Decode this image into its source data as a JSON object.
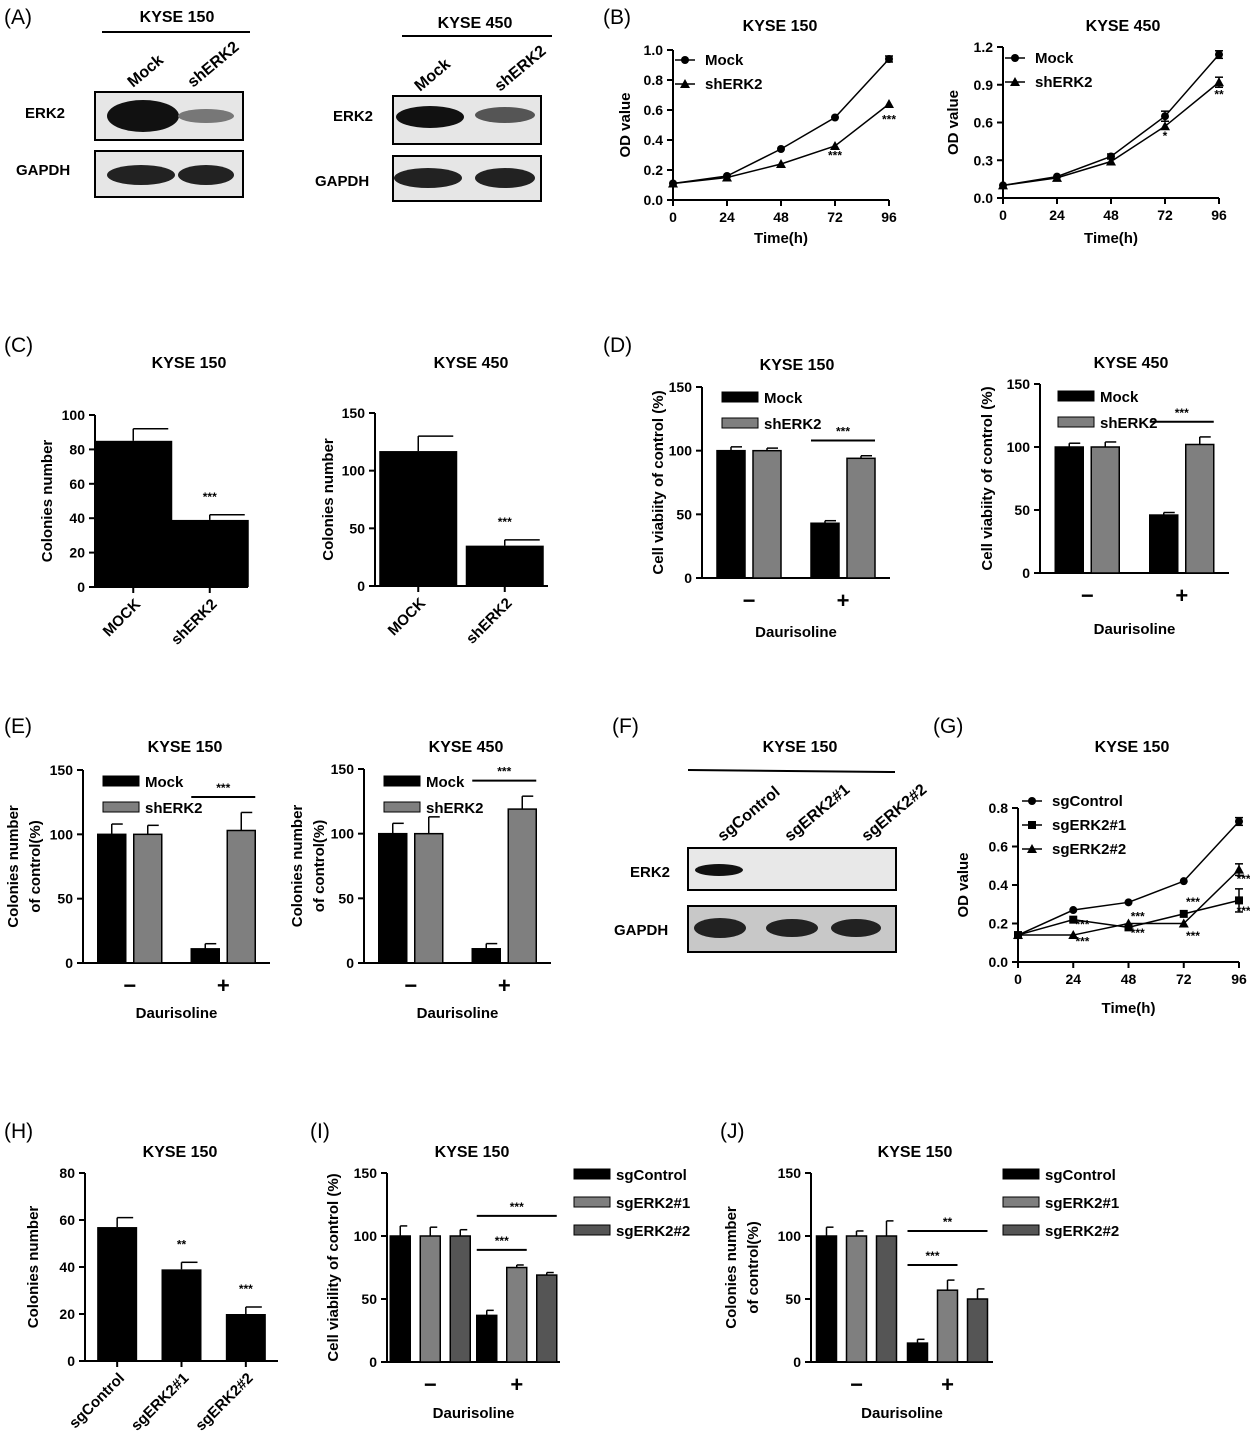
{
  "panels": {
    "A": {
      "label": "(A)",
      "blots": [
        {
          "cell_line": "KYSE 150",
          "lanes": [
            "Mock",
            "shERK2"
          ],
          "rows": [
            "ERK2",
            "GAPDH"
          ]
        },
        {
          "cell_line": "KYSE 450",
          "lanes": [
            "Mock",
            "shERK2"
          ],
          "rows": [
            "ERK2",
            "GAPDH"
          ]
        }
      ]
    },
    "F": {
      "label": "(F)",
      "cell_line": "KYSE 150",
      "lanes": [
        "sgControl",
        "sgERK2#1",
        "sgERK2#2"
      ],
      "rows": [
        "ERK2",
        "GAPDH"
      ]
    },
    "B": {
      "label": "(B)"
    },
    "C": {
      "label": "(C)"
    },
    "D": {
      "label": "(D)"
    },
    "E": {
      "label": "(E)"
    },
    "G": {
      "label": "(G)"
    },
    "H": {
      "label": "(H)"
    },
    "I": {
      "label": "(I)"
    },
    "J": {
      "label": "(J)"
    }
  },
  "chart_data": [
    {
      "id": "B1",
      "type": "line",
      "title": "KYSE 150",
      "xlabel": "Time(h)",
      "ylabel": "OD value",
      "x": [
        0,
        24,
        48,
        72,
        96
      ],
      "xlim": [
        0,
        96
      ],
      "ylim": [
        0,
        1.0
      ],
      "yticks": [
        "0.0",
        "0.2",
        "0.4",
        "0.6",
        "0.8",
        "1.0"
      ],
      "xticks": [
        "0",
        "24",
        "48",
        "72",
        "96"
      ],
      "series": [
        {
          "name": "Mock",
          "marker": "circle",
          "values": [
            0.11,
            0.16,
            0.34,
            0.55,
            0.94
          ],
          "err": [
            0,
            0,
            0,
            0,
            0.02
          ]
        },
        {
          "name": "shERK2",
          "marker": "triangle",
          "values": [
            0.11,
            0.15,
            0.24,
            0.36,
            0.64
          ],
          "err": [
            0,
            0,
            0,
            0,
            0
          ]
        }
      ],
      "annotations": [
        {
          "x": 72,
          "y": 0.27,
          "text": "***"
        },
        {
          "x": 96,
          "y": 0.51,
          "text": "***"
        }
      ]
    },
    {
      "id": "B2",
      "type": "line",
      "title": "KYSE 450",
      "xlabel": "Time(h)",
      "ylabel": "OD value",
      "x": [
        0,
        24,
        48,
        72,
        96
      ],
      "xlim": [
        0,
        96
      ],
      "ylim": [
        0,
        1.2
      ],
      "yticks": [
        "0.0",
        "0.3",
        "0.6",
        "0.9",
        "1.2"
      ],
      "xticks": [
        "0",
        "24",
        "48",
        "72",
        "96"
      ],
      "series": [
        {
          "name": "Mock",
          "marker": "circle",
          "values": [
            0.1,
            0.17,
            0.33,
            0.65,
            1.14
          ],
          "err": [
            0,
            0,
            0.02,
            0.04,
            0.03
          ]
        },
        {
          "name": "shERK2",
          "marker": "triangle",
          "values": [
            0.1,
            0.16,
            0.29,
            0.57,
            0.92
          ],
          "err": [
            0,
            0,
            0,
            0,
            0.04
          ]
        }
      ],
      "annotations": [
        {
          "x": 72,
          "y": 0.46,
          "text": "*"
        },
        {
          "x": 96,
          "y": 0.79,
          "text": "**"
        }
      ]
    },
    {
      "id": "C1",
      "type": "bar",
      "title": "KYSE 150",
      "ylabel": "Colonies number",
      "ylim": [
        0,
        100
      ],
      "yticks": [
        "0",
        "20",
        "40",
        "60",
        "80",
        "100"
      ],
      "categories": [
        "MOCK",
        "shERK2"
      ],
      "values": [
        85,
        39
      ],
      "err": [
        7,
        3
      ],
      "annotations": [
        {
          "index": 1,
          "text": "***"
        }
      ]
    },
    {
      "id": "C2",
      "type": "bar",
      "title": "KYSE 450",
      "ylabel": "Colonies number",
      "ylim": [
        0,
        150
      ],
      "yticks": [
        "0",
        "50",
        "100",
        "150"
      ],
      "categories": [
        "MOCK",
        "shERK2"
      ],
      "values": [
        117,
        35
      ],
      "err": [
        13,
        5
      ],
      "annotations": [
        {
          "index": 1,
          "text": "***"
        }
      ]
    },
    {
      "id": "D1",
      "type": "bar",
      "title": "KYSE 150",
      "xlabel": "Daurisoline",
      "ylabel": "Cell viabiity of control (%)",
      "ylim": [
        0,
        150
      ],
      "yticks": [
        "0",
        "50",
        "100",
        "150"
      ],
      "categories": [
        "−",
        "+"
      ],
      "series": [
        {
          "name": "Mock",
          "values": [
            100,
            43
          ],
          "err": [
            3,
            2
          ]
        },
        {
          "name": "shERK2",
          "values": [
            100,
            94
          ],
          "err": [
            2,
            2
          ]
        }
      ],
      "brackets": [
        {
          "group": 1,
          "text": "***"
        }
      ]
    },
    {
      "id": "D2",
      "type": "bar",
      "title": "KYSE 450",
      "xlabel": "Daurisoline",
      "ylabel": "Cell viabiity of control (%)",
      "ylim": [
        0,
        150
      ],
      "yticks": [
        "0",
        "50",
        "100",
        "150"
      ],
      "categories": [
        "−",
        "+"
      ],
      "series": [
        {
          "name": "Mock",
          "values": [
            100,
            46
          ],
          "err": [
            3,
            2
          ]
        },
        {
          "name": "shERK2",
          "values": [
            100,
            102
          ],
          "err": [
            4,
            6
          ]
        }
      ],
      "brackets": [
        {
          "group": 1,
          "text": "***"
        }
      ]
    },
    {
      "id": "E1",
      "type": "bar",
      "title": "KYSE 150",
      "xlabel": "Daurisoline",
      "ylabel": [
        "Colonies number",
        "of control(%)"
      ],
      "ylim": [
        0,
        150
      ],
      "yticks": [
        "0",
        "50",
        "100",
        "150"
      ],
      "categories": [
        "−",
        "+"
      ],
      "series": [
        {
          "name": "Mock",
          "values": [
            100,
            11
          ],
          "err": [
            8,
            4
          ]
        },
        {
          "name": "shERK2",
          "values": [
            100,
            103
          ],
          "err": [
            7,
            14
          ]
        }
      ],
      "brackets": [
        {
          "group": 1,
          "text": "***"
        }
      ]
    },
    {
      "id": "E2",
      "type": "bar",
      "title": "KYSE 450",
      "xlabel": "Daurisoline",
      "ylabel": [
        "Colonies number",
        "of control(%)"
      ],
      "ylim": [
        0,
        150
      ],
      "yticks": [
        "0",
        "50",
        "100",
        "150"
      ],
      "categories": [
        "−",
        "+"
      ],
      "series": [
        {
          "name": "Mock",
          "values": [
            100,
            11
          ],
          "err": [
            8,
            4
          ]
        },
        {
          "name": "shERK2",
          "values": [
            100,
            119
          ],
          "err": [
            13,
            10
          ]
        }
      ],
      "brackets": [
        {
          "group": 1,
          "text": "***"
        }
      ]
    },
    {
      "id": "G",
      "type": "line",
      "title": "KYSE 150",
      "xlabel": "Time(h)",
      "ylabel": "OD value",
      "x": [
        0,
        24,
        48,
        72,
        96
      ],
      "xlim": [
        0,
        96
      ],
      "ylim": [
        0,
        0.8
      ],
      "yticks": [
        "0.0",
        "0.2",
        "0.4",
        "0.6",
        "0.8"
      ],
      "xticks": [
        "0",
        "24",
        "48",
        "72",
        "96"
      ],
      "series": [
        {
          "name": "sgControl",
          "marker": "circle",
          "values": [
            0.14,
            0.27,
            0.31,
            0.42,
            0.73
          ],
          "err": [
            0,
            0,
            0,
            0,
            0.02
          ]
        },
        {
          "name": "sgERK2#1",
          "marker": "square",
          "values": [
            0.14,
            0.22,
            0.18,
            0.25,
            0.32
          ],
          "err": [
            0,
            0,
            0,
            0,
            0.06
          ]
        },
        {
          "name": "sgERK2#2",
          "marker": "triangle",
          "values": [
            0.14,
            0.14,
            0.2,
            0.2,
            0.48
          ],
          "err": [
            0,
            0,
            0,
            0,
            0.03
          ]
        }
      ],
      "annotations": [
        {
          "x": 28,
          "y": 0.175,
          "text": "***"
        },
        {
          "x": 28,
          "y": 0.085,
          "text": "***"
        },
        {
          "x": 52,
          "y": 0.215,
          "text": "***"
        },
        {
          "x": 52,
          "y": 0.13,
          "text": "***"
        },
        {
          "x": 76,
          "y": 0.29,
          "text": "***"
        },
        {
          "x": 76,
          "y": 0.115,
          "text": "***"
        },
        {
          "x": 98,
          "y": 0.41,
          "text": "***"
        },
        {
          "x": 98,
          "y": 0.245,
          "text": "***"
        }
      ]
    },
    {
      "id": "H",
      "type": "bar",
      "title": "KYSE 150",
      "ylabel": "Colonies number",
      "ylim": [
        0,
        80
      ],
      "yticks": [
        "0",
        "20",
        "40",
        "60",
        "80"
      ],
      "categories": [
        "sgControl",
        "sgERK2#1",
        "sgERK2#2"
      ],
      "values": [
        57,
        39,
        20
      ],
      "err": [
        4,
        3,
        3
      ],
      "annotations": [
        {
          "index": 1,
          "text": "**"
        },
        {
          "index": 2,
          "text": "***"
        }
      ]
    },
    {
      "id": "I",
      "type": "bar",
      "title": "KYSE 150",
      "xlabel": "Daurisoline",
      "ylabel": "Cell viability of control (%)",
      "ylim": [
        0,
        150
      ],
      "yticks": [
        "0",
        "50",
        "100",
        "150"
      ],
      "categories": [
        "−",
        "+"
      ],
      "series": [
        {
          "name": "sgControl",
          "values": [
            100,
            37
          ],
          "err": [
            8,
            4
          ]
        },
        {
          "name": "sgERK2#1",
          "values": [
            100,
            75
          ],
          "err": [
            7,
            2
          ]
        },
        {
          "name": "sgERK2#2",
          "values": [
            100,
            69
          ],
          "err": [
            5,
            2
          ]
        }
      ],
      "brackets": [
        {
          "group": 1,
          "from": 0,
          "to": 1,
          "text": "***"
        },
        {
          "group": 1,
          "from": 0,
          "to": 2,
          "text": "***"
        }
      ]
    },
    {
      "id": "J",
      "type": "bar",
      "title": "KYSE 150",
      "xlabel": "Daurisoline",
      "ylabel": [
        "Colonies number",
        "of control(%)"
      ],
      "ylim": [
        0,
        150
      ],
      "yticks": [
        "0",
        "50",
        "100",
        "150"
      ],
      "categories": [
        "−",
        "+"
      ],
      "series": [
        {
          "name": "sgControl",
          "values": [
            100,
            15
          ],
          "err": [
            7,
            3
          ]
        },
        {
          "name": "sgERK2#1",
          "values": [
            100,
            57
          ],
          "err": [
            4,
            8
          ]
        },
        {
          "name": "sgERK2#2",
          "values": [
            100,
            50
          ],
          "err": [
            12,
            8
          ]
        }
      ],
      "brackets": [
        {
          "group": 1,
          "from": 0,
          "to": 1,
          "text": "***"
        },
        {
          "group": 1,
          "from": 0,
          "to": 2,
          "text": "**"
        }
      ]
    }
  ]
}
